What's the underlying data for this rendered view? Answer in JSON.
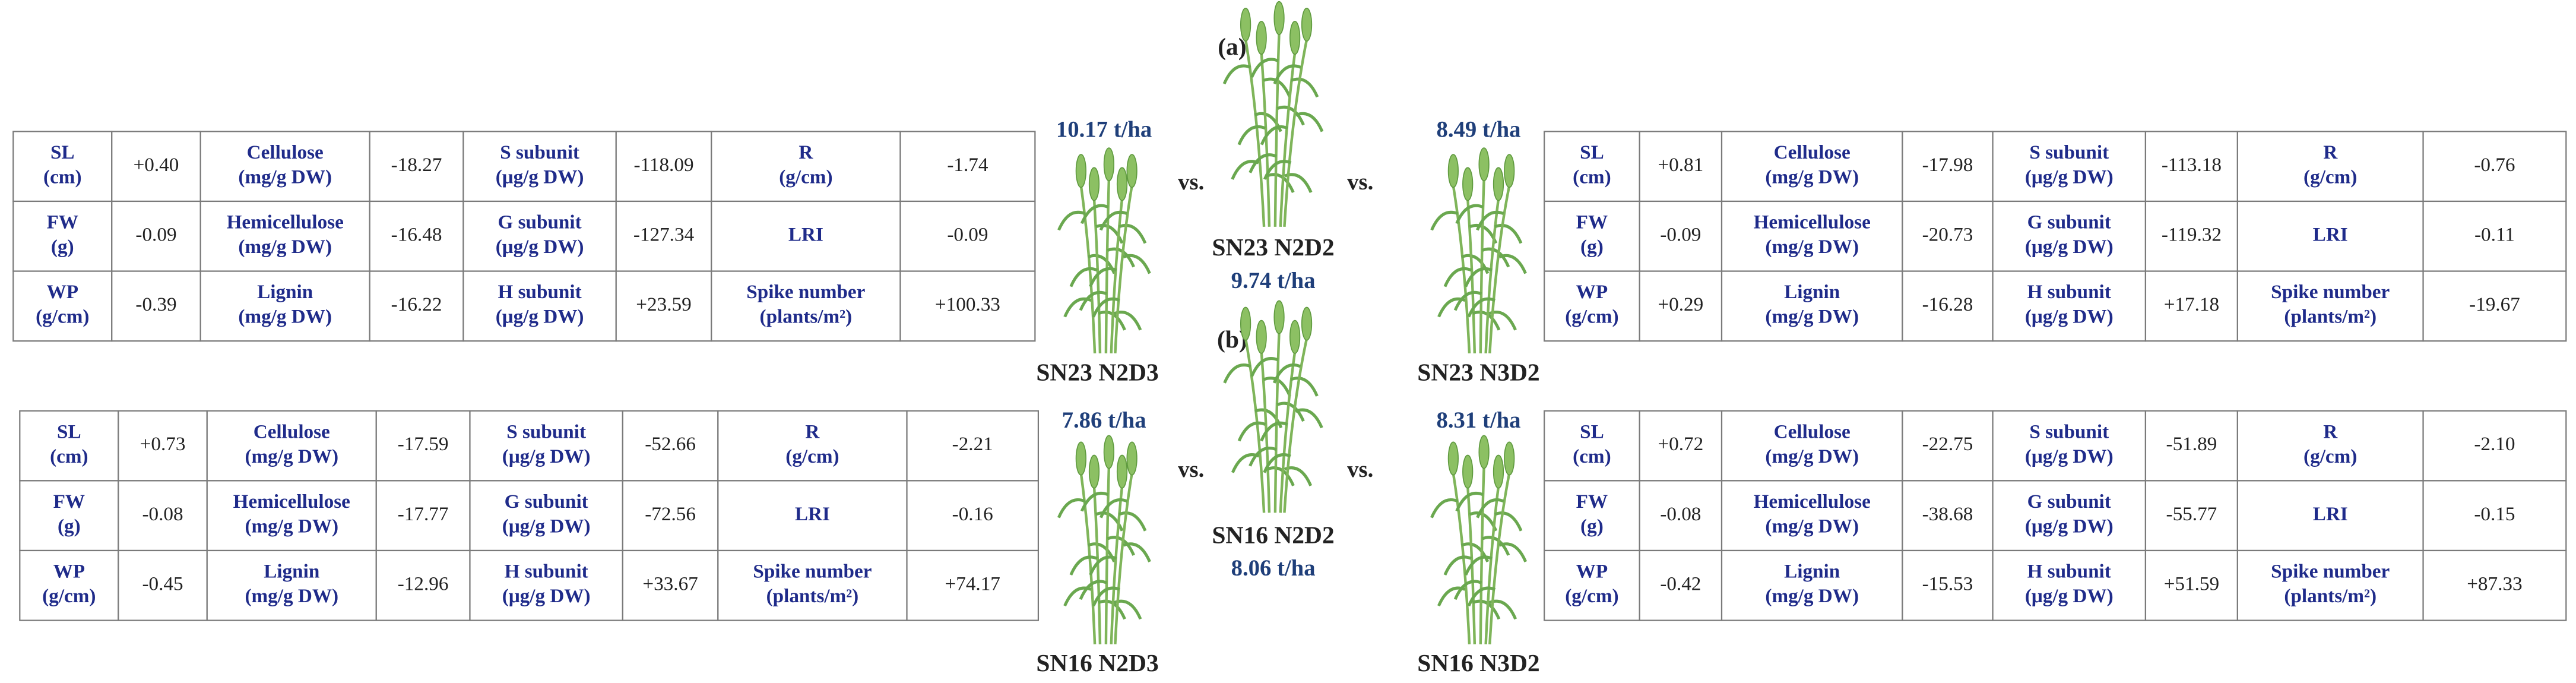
{
  "tables": [
    {
      "rows": [
        [
          [
            "SL",
            "(cm)"
          ],
          "+0.40",
          [
            "Cellulose",
            "(mg/g DW)"
          ],
          "-18.27",
          [
            "S subunit",
            "(μg/g DW)"
          ],
          "-118.09",
          [
            "R",
            "(g/cm)"
          ],
          "-1.74"
        ],
        [
          [
            "FW",
            "(g)"
          ],
          "-0.09",
          [
            "Hemicellulose",
            "(mg/g DW)"
          ],
          "-16.48",
          [
            "G subunit",
            "(μg/g DW)"
          ],
          "-127.34",
          [
            "LRI"
          ],
          "-0.09"
        ],
        [
          [
            "WP",
            "(g/cm)"
          ],
          "-0.39",
          [
            "Lignin",
            "(mg/g DW)"
          ],
          "-16.22",
          [
            "H subunit",
            "(μg/g DW)"
          ],
          "+23.59",
          [
            "Spike number",
            "(plants/m²)"
          ],
          "+100.33"
        ]
      ]
    },
    {
      "rows": [
        [
          [
            "SL",
            "(cm)"
          ],
          "+0.73",
          [
            "Cellulose",
            "(mg/g DW)"
          ],
          "-17.59",
          [
            "S subunit",
            "(μg/g DW)"
          ],
          "-52.66",
          [
            "R",
            "(g/cm)"
          ],
          "-2.21"
        ],
        [
          [
            "FW",
            "(g)"
          ],
          "-0.08",
          [
            "Hemicellulose",
            "(mg/g DW)"
          ],
          "-17.77",
          [
            "G subunit",
            "(μg/g DW)"
          ],
          "-72.56",
          [
            "LRI"
          ],
          "-0.16"
        ],
        [
          [
            "WP",
            "(g/cm)"
          ],
          "-0.45",
          [
            "Lignin",
            "(mg/g DW)"
          ],
          "-12.96",
          [
            "H subunit",
            "(μg/g DW)"
          ],
          "+33.67",
          [
            "Spike number",
            "(plants/m²)"
          ],
          "+74.17"
        ]
      ]
    },
    {
      "rows": [
        [
          [
            "SL",
            "(cm)"
          ],
          "+0.81",
          [
            "Cellulose",
            "(mg/g DW)"
          ],
          "-17.98",
          [
            "S subunit",
            "(μg/g DW)"
          ],
          "-113.18",
          [
            "R",
            "(g/cm)"
          ],
          "-0.76"
        ],
        [
          [
            "FW",
            "(g)"
          ],
          "-0.09",
          [
            "Hemicellulose",
            "(mg/g DW)"
          ],
          "-20.73",
          [
            "G subunit",
            "(μg/g DW)"
          ],
          "-119.32",
          [
            "LRI"
          ],
          "-0.11"
        ],
        [
          [
            "WP",
            "(g/cm)"
          ],
          "+0.29",
          [
            "Lignin",
            "(mg/g DW)"
          ],
          "-16.28",
          [
            "H subunit",
            "(μg/g DW)"
          ],
          "+17.18",
          [
            "Spike number",
            "(plants/m²)"
          ],
          "-19.67"
        ]
      ]
    },
    {
      "rows": [
        [
          [
            "SL",
            "(cm)"
          ],
          "+0.72",
          [
            "Cellulose",
            "(mg/g DW)"
          ],
          "-22.75",
          [
            "S subunit",
            "(μg/g DW)"
          ],
          "-51.89",
          [
            "R",
            "(g/cm)"
          ],
          "-2.10"
        ],
        [
          [
            "FW",
            "(g)"
          ],
          "-0.08",
          [
            "Hemicellulose",
            "(mg/g DW)"
          ],
          "-38.68",
          [
            "G subunit",
            "(μg/g DW)"
          ],
          "-55.77",
          [
            "LRI"
          ],
          "-0.15"
        ],
        [
          [
            "WP",
            "(g/cm)"
          ],
          "-0.42",
          [
            "Lignin",
            "(mg/g DW)"
          ],
          "-15.53",
          [
            "H subunit",
            "(μg/g DW)"
          ],
          "+51.59",
          [
            "Spike number",
            "(plants/m²)"
          ],
          "+87.33"
        ]
      ]
    }
  ],
  "panels": [
    {
      "label": "(a)",
      "left": {
        "name": "SN23 N2D3",
        "yield": "10.17 t/ha"
      },
      "center": {
        "name": "SN23 N2D2",
        "yield": "9.74 t/ha"
      },
      "right": {
        "name": "SN23 N3D2",
        "yield": "8.49 t/ha"
      },
      "vs": [
        "vs.",
        "vs."
      ]
    },
    {
      "label": "(b)",
      "left": {
        "name": "SN16 N2D3",
        "yield": "7.86 t/ha"
      },
      "center": {
        "name": "SN16 N2D2",
        "yield": "8.06 t/ha"
      },
      "right": {
        "name": "SN16 N3D2",
        "yield": "8.31 t/ha"
      },
      "vs": [
        "vs.",
        "vs."
      ]
    }
  ]
}
